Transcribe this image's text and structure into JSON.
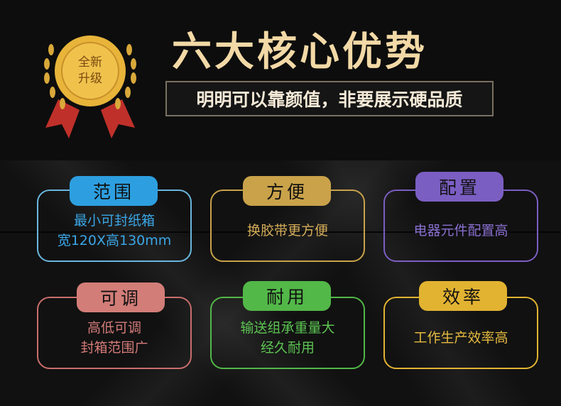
{
  "header": {
    "title": "六大核心优势",
    "subtitle": "明明可以靠颜值，非要展示硬品质",
    "badge": "全新升级"
  },
  "colors": {
    "blue": "#2d9fe0",
    "gold": "#c9a24a",
    "purple": "#7b5ec2",
    "rose": "#c96e6c",
    "green": "#52b848",
    "yellow": "#e2b331"
  },
  "features": [
    {
      "tag": "范围",
      "lines": [
        "最小可封纸箱",
        "宽120X高130mm"
      ]
    },
    {
      "tag": "方便",
      "lines": [
        "换胶带更方便"
      ]
    },
    {
      "tag": "配置",
      "lines": [
        "电器元件配置高"
      ]
    },
    {
      "tag": "可调",
      "lines": [
        "高低可调",
        "封箱范围广"
      ]
    },
    {
      "tag": "耐用",
      "lines": [
        "输送组承重量大",
        "经久耐用"
      ]
    },
    {
      "tag": "效率",
      "lines": [
        "工作生产效率高"
      ]
    }
  ]
}
